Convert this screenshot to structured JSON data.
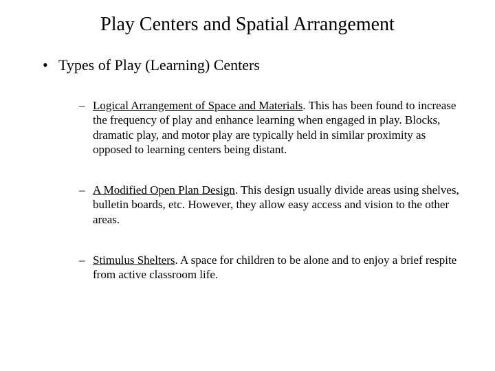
{
  "title": "Play Centers and Spatial Arrangement",
  "heading": "Types of Play (Learning) Centers",
  "items": [
    {
      "lead": "Logical Arrangement of Space and Materials",
      "body": ".  This has been found to increase the frequency of play and enhance learning when engaged in play.  Blocks, dramatic play, and motor play are typically held in similar proximity as opposed to learning centers being distant."
    },
    {
      "lead": "A Modified Open Plan Design",
      "body": ".  This design usually divide areas using shelves, bulletin boards, etc.  However, they allow easy access and vision to the other areas."
    },
    {
      "lead": "Stimulus Shelters",
      "body": ".  A space for children to be alone and to enjoy a brief respite from active classroom life."
    }
  ],
  "colors": {
    "background": "#ffffff",
    "text": "#000000"
  },
  "typography": {
    "font_family": "Times New Roman",
    "title_fontsize": 28,
    "level1_fontsize": 22,
    "level2_fontsize": 17
  }
}
